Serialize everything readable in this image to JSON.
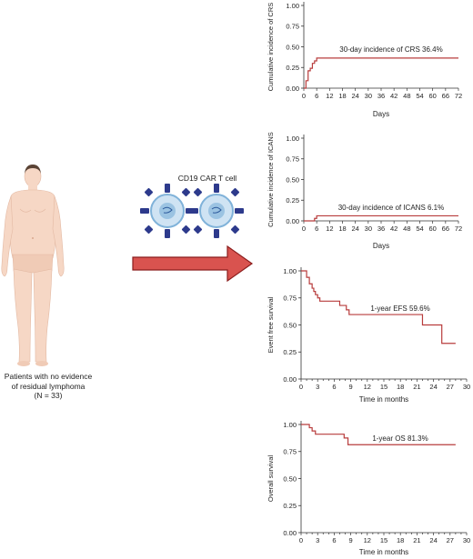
{
  "patient": {
    "caption_line1": "Patients with no evidence",
    "caption_line2": "of residual lymphoma",
    "caption_line3": "(N = 33)"
  },
  "car_t": {
    "title": "CD19 CAR T cell"
  },
  "colors": {
    "curve": "#b83c3c",
    "arrow_fill": "#d9534f",
    "arrow_stroke": "#8b1d1d",
    "skin": "#f6d7c5",
    "cell_blue": "#7fb2d9"
  },
  "chart_data": [
    {
      "type": "line",
      "xlabel": "Days",
      "ylabel": "Cumulative incidence of CRS",
      "xlim": [
        0,
        72
      ],
      "ylim": [
        0,
        1
      ],
      "xticks": [
        "0",
        "6",
        "12",
        "18",
        "24",
        "30",
        "36",
        "42",
        "48",
        "54",
        "60",
        "66",
        "72"
      ],
      "yticks": [
        "0.00",
        "0.25",
        "0.50",
        "0.75",
        "1.00"
      ],
      "annotation": "30-day incidence of CRS 36.4%",
      "series": [
        {
          "x": [
            0,
            1,
            1,
            2,
            2,
            3,
            3,
            4,
            4,
            5,
            5,
            6,
            6,
            72
          ],
          "y": [
            0,
            0,
            0.09,
            0.09,
            0.21,
            0.21,
            0.24,
            0.24,
            0.3,
            0.3,
            0.33,
            0.33,
            0.364,
            0.364
          ]
        }
      ]
    },
    {
      "type": "line",
      "xlabel": "Days",
      "ylabel": "Cumulative incidence of ICANS",
      "xlim": [
        0,
        72
      ],
      "ylim": [
        0,
        1
      ],
      "xticks": [
        "0",
        "6",
        "12",
        "18",
        "24",
        "30",
        "36",
        "42",
        "48",
        "54",
        "60",
        "66",
        "72"
      ],
      "yticks": [
        "0.00",
        "0.25",
        "0.50",
        "0.75",
        "1.00"
      ],
      "annotation": "30-day incidence of ICANS 6.1%",
      "series": [
        {
          "x": [
            0,
            5,
            5,
            6,
            6,
            72
          ],
          "y": [
            0,
            0,
            0.03,
            0.03,
            0.061,
            0.061
          ]
        }
      ]
    },
    {
      "type": "line",
      "xlabel": "Time in months",
      "ylabel": "Event free survival",
      "xlim": [
        0,
        30
      ],
      "ylim": [
        0,
        1
      ],
      "xticks": [
        "0",
        "1",
        "2",
        "3",
        "4",
        "5",
        "6",
        "7",
        "8",
        "9",
        "10",
        "11",
        "12",
        "13",
        "14",
        "15",
        "16",
        "17",
        "18",
        "19",
        "20",
        "21",
        "22",
        "23",
        "24",
        "25",
        "26",
        "27",
        "28",
        "29",
        "30"
      ],
      "xtick_labels_shown": [
        "0",
        "3",
        "6",
        "9",
        "12",
        "15",
        "18",
        "21",
        "24",
        "27",
        "30"
      ],
      "yticks": [
        "0.00",
        "0.25",
        "0.50",
        "0.75",
        "1.00"
      ],
      "annotation": "1-year EFS 59.6%",
      "series": [
        {
          "x": [
            0,
            1.0,
            1.0,
            1.5,
            1.5,
            2.0,
            2.0,
            2.3,
            2.3,
            2.6,
            2.6,
            3.0,
            3.0,
            3.4,
            3.4,
            4.2,
            4.2,
            7.0,
            7.0,
            8.2,
            8.2,
            8.7,
            8.7,
            22.0,
            22.0,
            25.5,
            25.5,
            28.0
          ],
          "y": [
            1.0,
            1.0,
            0.94,
            0.94,
            0.88,
            0.88,
            0.84,
            0.84,
            0.81,
            0.81,
            0.78,
            0.78,
            0.75,
            0.75,
            0.72,
            0.72,
            0.72,
            0.72,
            0.68,
            0.68,
            0.64,
            0.64,
            0.596,
            0.596,
            0.5,
            0.5,
            0.33,
            0.33
          ]
        }
      ]
    },
    {
      "type": "line",
      "xlabel": "Time in months",
      "ylabel": "Overall survival",
      "xlim": [
        0,
        30
      ],
      "ylim": [
        0,
        1
      ],
      "xticks": [
        "0",
        "1",
        "2",
        "3",
        "4",
        "5",
        "6",
        "7",
        "8",
        "9",
        "10",
        "11",
        "12",
        "13",
        "14",
        "15",
        "16",
        "17",
        "18",
        "19",
        "20",
        "21",
        "22",
        "23",
        "24",
        "25",
        "26",
        "27",
        "28",
        "29",
        "30"
      ],
      "xtick_labels_shown": [
        "0",
        "3",
        "6",
        "9",
        "12",
        "15",
        "18",
        "21",
        "24",
        "27",
        "30"
      ],
      "yticks": [
        "0.00",
        "0.25",
        "0.50",
        "0.75",
        "1.00"
      ],
      "annotation": "1-year OS 81.3%",
      "series": [
        {
          "x": [
            0,
            1.5,
            1.5,
            2.0,
            2.0,
            2.6,
            2.6,
            7.8,
            7.8,
            8.5,
            8.5,
            28.0
          ],
          "y": [
            1.0,
            1.0,
            0.97,
            0.97,
            0.94,
            0.94,
            0.91,
            0.91,
            0.875,
            0.875,
            0.813,
            0.813
          ]
        }
      ]
    }
  ]
}
